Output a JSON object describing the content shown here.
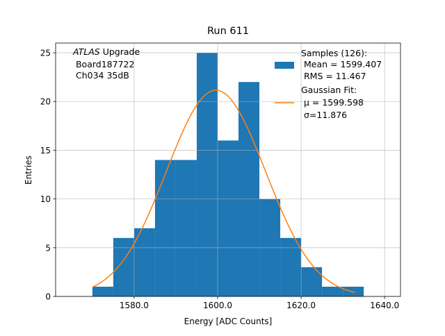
{
  "chart_data": {
    "type": "bar",
    "title": "Run 611",
    "xlabel": "Energy [ADC Counts]",
    "ylabel": "Entries",
    "xlim": [
      1561.2,
      1643.8
    ],
    "ylim": [
      0,
      26
    ],
    "grid": true,
    "xticks": [
      1580,
      1600,
      1620,
      1640
    ],
    "xtick_labels": [
      "1580.0",
      "1600.0",
      "1620.0",
      "1640.0"
    ],
    "yticks": [
      0,
      5,
      10,
      15,
      20,
      25
    ],
    "ytick_labels": [
      "0",
      "5",
      "10",
      "15",
      "20",
      "25"
    ],
    "bin_edges": [
      1570,
      1575,
      1580,
      1585,
      1590,
      1595,
      1600,
      1605,
      1610,
      1615,
      1620,
      1625,
      1630,
      1635
    ],
    "counts": [
      1,
      6,
      7,
      14,
      14,
      25,
      16,
      22,
      10,
      6,
      3,
      1,
      1
    ],
    "bar_color": "#1f77b4",
    "fit": {
      "type": "gaussian",
      "mu": 1599.598,
      "sigma": 11.876,
      "amplitude": 21.16,
      "range": [
        1570,
        1633
      ],
      "color": "#ff7f0e"
    },
    "annotation": {
      "italic": "ATLAS",
      "rest": " Upgrade",
      "line2": " Board187722",
      "line3": " Ch034 35dB"
    },
    "legend": {
      "placement": "top-right",
      "entries": [
        {
          "lines": [
            "Samples (126):",
            " Mean = 1599.407",
            " RMS = 11.467"
          ]
        },
        {
          "lines": [
            "Gaussian Fit:",
            " μ = 1599.598",
            " σ=11.876"
          ]
        }
      ]
    }
  }
}
